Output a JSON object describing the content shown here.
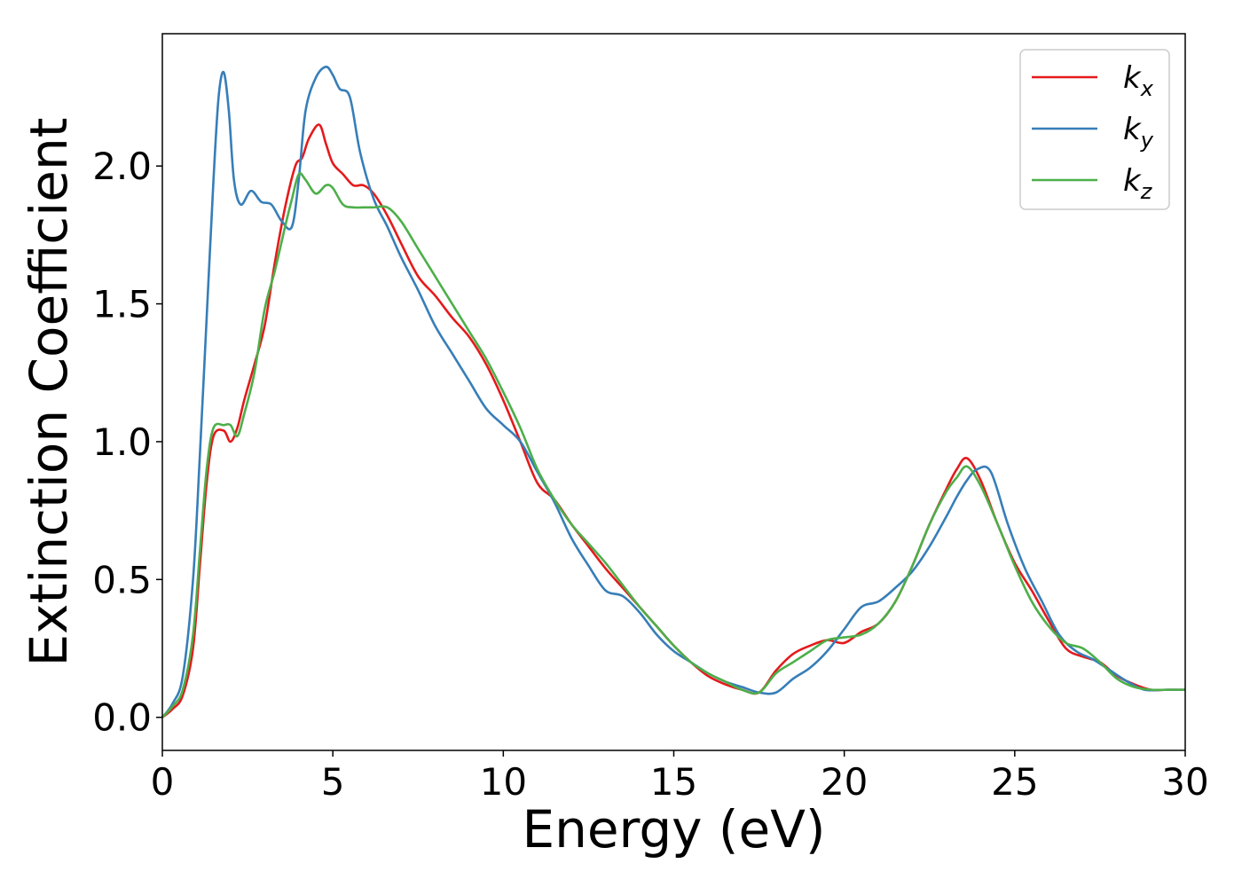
{
  "chart_data": {
    "type": "line",
    "title": "",
    "xlabel": "Energy (eV)",
    "ylabel": "Extinction Coefficient",
    "xlim": [
      0,
      30
    ],
    "ylim": [
      -0.12,
      2.48
    ],
    "xticks": [
      0,
      5,
      10,
      15,
      20,
      25,
      30
    ],
    "xtick_labels": [
      "0",
      "5",
      "10",
      "15",
      "20",
      "25",
      "30"
    ],
    "yticks": [
      0.0,
      0.5,
      1.0,
      1.5,
      2.0
    ],
    "ytick_labels": [
      "0.0",
      "0.5",
      "1.0",
      "1.5",
      "2.0"
    ],
    "grid": false,
    "legend_position": "top-right",
    "series": [
      {
        "name": "k_x",
        "label_main": "k",
        "label_sub": "x",
        "color": "#e41a1c",
        "x": [
          0,
          0.3,
          0.6,
          0.9,
          1.1,
          1.3,
          1.5,
          1.8,
          2.0,
          2.2,
          2.4,
          2.7,
          3.0,
          3.3,
          3.6,
          3.9,
          4.1,
          4.3,
          4.6,
          4.8,
          5.0,
          5.3,
          5.6,
          5.9,
          6.2,
          6.6,
          7.0,
          7.5,
          8.0,
          8.5,
          9.0,
          9.5,
          10.0,
          10.5,
          11.0,
          11.5,
          12.0,
          12.5,
          13.0,
          13.5,
          14.0,
          14.5,
          15.0,
          15.5,
          16.0,
          16.5,
          17.0,
          17.5,
          18.0,
          18.5,
          19.0,
          19.5,
          20.0,
          20.5,
          21.0,
          21.5,
          22.0,
          22.5,
          23.0,
          23.3,
          23.6,
          24.0,
          24.5,
          25.0,
          25.5,
          26.0,
          26.5,
          27.0,
          27.5,
          28.0,
          28.5,
          29.0,
          29.5,
          30.0
        ],
        "y": [
          0.0,
          0.03,
          0.08,
          0.25,
          0.55,
          0.85,
          1.02,
          1.04,
          1.0,
          1.05,
          1.15,
          1.28,
          1.42,
          1.65,
          1.85,
          2.0,
          2.03,
          2.1,
          2.15,
          2.08,
          2.01,
          1.97,
          1.93,
          1.93,
          1.9,
          1.82,
          1.72,
          1.6,
          1.53,
          1.45,
          1.38,
          1.28,
          1.15,
          1.0,
          0.85,
          0.79,
          0.7,
          0.62,
          0.54,
          0.47,
          0.4,
          0.33,
          0.26,
          0.2,
          0.15,
          0.12,
          0.1,
          0.09,
          0.17,
          0.23,
          0.26,
          0.28,
          0.27,
          0.31,
          0.34,
          0.42,
          0.55,
          0.7,
          0.83,
          0.9,
          0.94,
          0.86,
          0.7,
          0.56,
          0.46,
          0.35,
          0.25,
          0.22,
          0.2,
          0.15,
          0.12,
          0.1,
          0.1,
          0.1
        ]
      },
      {
        "name": "k_y",
        "label_main": "k",
        "label_sub": "y",
        "color": "#377eb8",
        "x": [
          0,
          0.3,
          0.6,
          0.9,
          1.1,
          1.3,
          1.5,
          1.65,
          1.8,
          1.95,
          2.1,
          2.3,
          2.6,
          2.9,
          3.2,
          3.5,
          3.8,
          4.0,
          4.2,
          4.5,
          4.8,
          5.0,
          5.2,
          5.5,
          5.8,
          6.2,
          6.6,
          7.0,
          7.5,
          8.0,
          8.5,
          9.0,
          9.5,
          10.0,
          10.5,
          11.0,
          11.5,
          12.0,
          12.5,
          13.0,
          13.5,
          14.0,
          14.5,
          15.0,
          15.5,
          16.0,
          16.5,
          17.0,
          17.5,
          18.0,
          18.5,
          19.0,
          19.5,
          20.0,
          20.5,
          21.0,
          21.5,
          22.0,
          22.5,
          23.0,
          23.3,
          23.6,
          23.9,
          24.3,
          24.8,
          25.3,
          25.8,
          26.3,
          26.8,
          27.3,
          27.8,
          28.3,
          28.8,
          29.4,
          30.0
        ],
        "y": [
          0.0,
          0.05,
          0.15,
          0.5,
          0.95,
          1.45,
          1.95,
          2.25,
          2.34,
          2.2,
          1.95,
          1.86,
          1.91,
          1.87,
          1.86,
          1.8,
          1.78,
          1.95,
          2.2,
          2.32,
          2.36,
          2.33,
          2.28,
          2.25,
          2.05,
          1.88,
          1.78,
          1.67,
          1.55,
          1.42,
          1.32,
          1.22,
          1.12,
          1.06,
          1.0,
          0.89,
          0.78,
          0.65,
          0.55,
          0.46,
          0.44,
          0.38,
          0.3,
          0.24,
          0.2,
          0.16,
          0.13,
          0.11,
          0.09,
          0.09,
          0.14,
          0.18,
          0.24,
          0.32,
          0.4,
          0.42,
          0.47,
          0.53,
          0.62,
          0.73,
          0.8,
          0.86,
          0.9,
          0.89,
          0.7,
          0.54,
          0.42,
          0.3,
          0.24,
          0.21,
          0.17,
          0.13,
          0.1,
          0.1,
          0.1
        ]
      },
      {
        "name": "k_z",
        "label_main": "k",
        "label_sub": "z",
        "color": "#4daf4a",
        "x": [
          0,
          0.3,
          0.6,
          0.9,
          1.1,
          1.3,
          1.5,
          1.8,
          2.0,
          2.2,
          2.4,
          2.7,
          3.0,
          3.3,
          3.6,
          3.8,
          4.0,
          4.2,
          4.5,
          4.8,
          5.0,
          5.3,
          5.6,
          5.9,
          6.2,
          6.6,
          7.0,
          7.5,
          8.0,
          8.5,
          9.0,
          9.5,
          10.0,
          10.5,
          11.0,
          11.5,
          12.0,
          12.5,
          13.0,
          13.5,
          14.0,
          14.5,
          15.0,
          15.5,
          16.0,
          16.5,
          17.0,
          17.5,
          18.0,
          18.5,
          19.0,
          19.5,
          20.0,
          20.5,
          21.0,
          21.5,
          22.0,
          22.5,
          23.0,
          23.3,
          23.6,
          24.0,
          24.5,
          25.0,
          25.5,
          26.0,
          26.5,
          27.0,
          27.5,
          28.0,
          28.5,
          29.0,
          29.5,
          30.0
        ],
        "y": [
          0.0,
          0.04,
          0.1,
          0.3,
          0.6,
          0.9,
          1.05,
          1.06,
          1.06,
          1.02,
          1.1,
          1.25,
          1.48,
          1.62,
          1.78,
          1.88,
          1.97,
          1.95,
          1.9,
          1.93,
          1.92,
          1.86,
          1.85,
          1.85,
          1.85,
          1.85,
          1.8,
          1.7,
          1.6,
          1.5,
          1.4,
          1.3,
          1.18,
          1.05,
          0.9,
          0.79,
          0.7,
          0.63,
          0.56,
          0.48,
          0.4,
          0.33,
          0.26,
          0.2,
          0.16,
          0.13,
          0.1,
          0.09,
          0.16,
          0.2,
          0.24,
          0.28,
          0.29,
          0.3,
          0.34,
          0.42,
          0.55,
          0.7,
          0.82,
          0.87,
          0.91,
          0.84,
          0.7,
          0.55,
          0.42,
          0.33,
          0.27,
          0.25,
          0.2,
          0.14,
          0.11,
          0.1,
          0.1,
          0.1
        ]
      }
    ]
  }
}
